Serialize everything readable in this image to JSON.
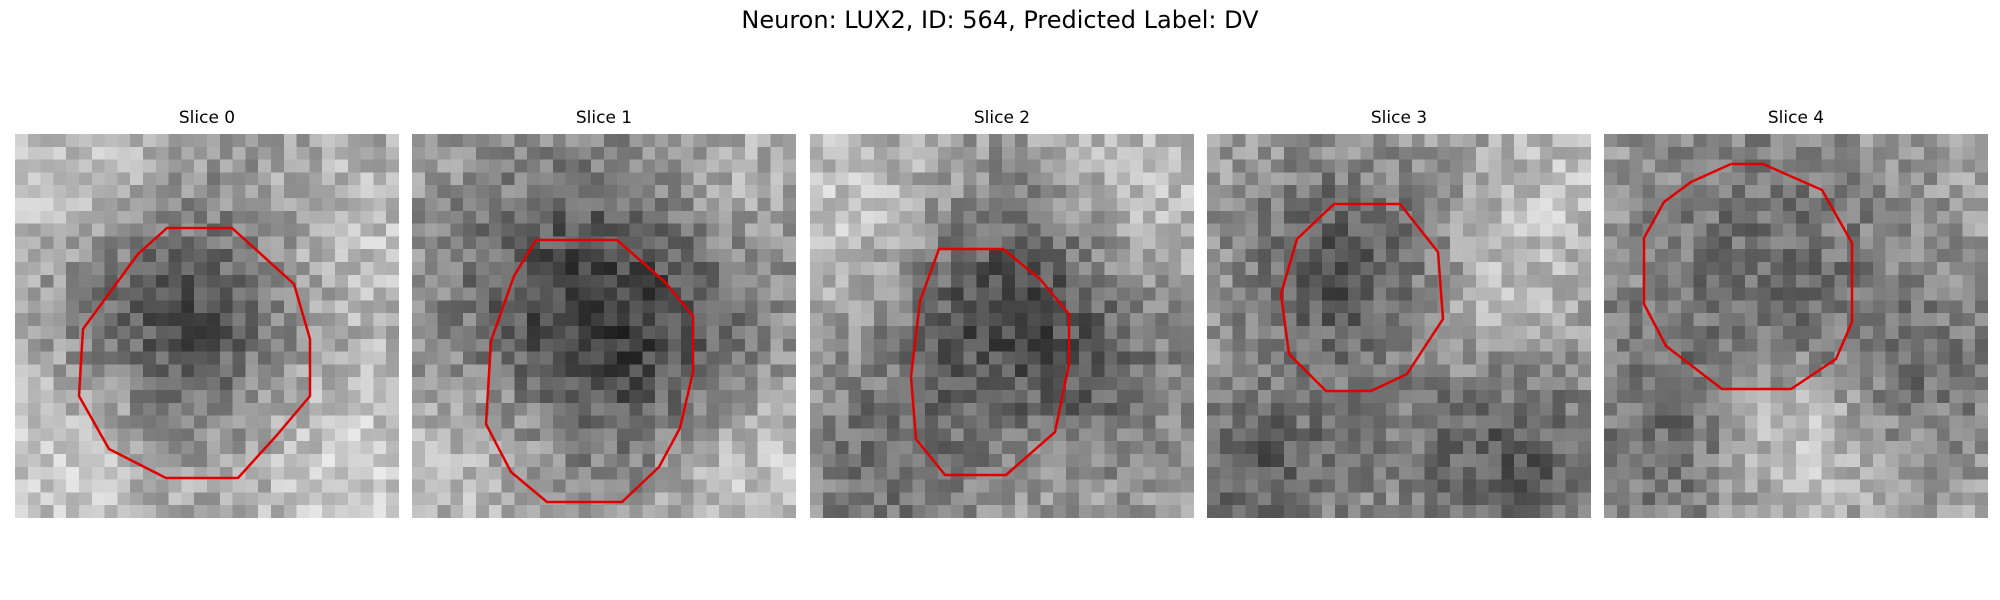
{
  "figure": {
    "title": "Neuron: LUX2, ID: 564, Predicted Label: DV",
    "roi_color": "#e00000",
    "colormap": "gray"
  },
  "slices": [
    {
      "title": "Slice 0"
    },
    {
      "title": "Slice 1"
    },
    {
      "title": "Slice 2"
    },
    {
      "title": "Slice 3"
    },
    {
      "title": "Slice 4"
    }
  ]
}
